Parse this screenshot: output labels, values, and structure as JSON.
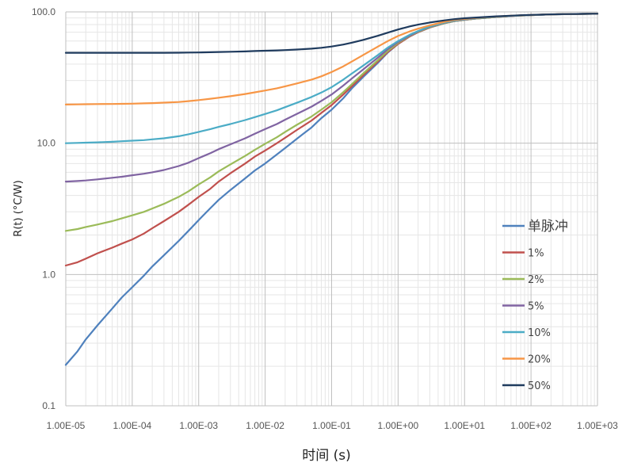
{
  "chart_data": {
    "type": "line",
    "xscale": "log",
    "yscale": "log",
    "xlabel": "时间 (s)",
    "ylabel": "R(t) (°C/W)",
    "xlim": [
      1e-05,
      1000
    ],
    "ylim": [
      0.1,
      100
    ],
    "grid": true,
    "legend_position": "right",
    "x_tick_labels": [
      "1.00E-05",
      "1.00E-04",
      "1.00E-03",
      "1.00E-02",
      "1.00E-01",
      "1.00E+00",
      "1.00E+01",
      "1.00E+02",
      "1.00E+03"
    ],
    "y_tick_labels": [
      "0.1",
      "1.0",
      "10.0",
      "100.0"
    ],
    "x": [
      1e-05,
      1.5e-05,
      2e-05,
      3e-05,
      5e-05,
      7e-05,
      0.0001,
      0.00015,
      0.0002,
      0.0003,
      0.0005,
      0.0007,
      0.001,
      0.0015,
      0.002,
      0.003,
      0.005,
      0.007,
      0.01,
      0.015,
      0.02,
      0.03,
      0.05,
      0.07,
      0.1,
      0.15,
      0.2,
      0.3,
      0.5,
      0.7,
      1,
      1.5,
      2,
      3,
      5,
      7,
      10,
      15,
      20,
      30,
      50,
      70,
      100,
      150,
      200,
      300,
      500,
      700,
      1000
    ],
    "series": [
      {
        "name": "单脉冲",
        "color": "#4f81bd",
        "values": [
          0.205,
          0.26,
          0.32,
          0.41,
          0.55,
          0.67,
          0.8,
          0.98,
          1.15,
          1.4,
          1.8,
          2.15,
          2.6,
          3.2,
          3.7,
          4.4,
          5.4,
          6.2,
          7.0,
          8.2,
          9.2,
          10.8,
          13.2,
          15.5,
          18.0,
          22.0,
          26.0,
          32.0,
          41.0,
          49.0,
          57.0,
          65.0,
          70.0,
          76.0,
          82.0,
          85.0,
          87.0,
          89.0,
          90.0,
          91.5,
          93.0,
          93.8,
          94.5,
          95.2,
          95.6,
          96.0,
          96.4,
          96.6,
          96.8
        ]
      },
      {
        "name": "1%",
        "color": "#c0504d",
        "values": [
          1.17,
          1.24,
          1.32,
          1.45,
          1.6,
          1.72,
          1.85,
          2.05,
          2.25,
          2.55,
          3.0,
          3.4,
          3.9,
          4.5,
          5.1,
          5.9,
          7.0,
          7.9,
          8.8,
          10.0,
          11.0,
          12.6,
          14.9,
          17.0,
          19.5,
          23.5,
          27.0,
          33.0,
          42.0,
          49.5,
          57.0,
          65.0,
          70.0,
          76.0,
          82.0,
          85.0,
          87.0,
          89.0,
          90.0,
          91.5,
          93.0,
          93.8,
          94.5,
          95.2,
          95.6,
          96.0,
          96.4,
          96.6,
          96.8
        ]
      },
      {
        "name": "2%",
        "color": "#9bbb59",
        "values": [
          2.15,
          2.22,
          2.3,
          2.4,
          2.55,
          2.68,
          2.82,
          3.0,
          3.18,
          3.45,
          3.9,
          4.3,
          4.85,
          5.5,
          6.1,
          6.9,
          8.0,
          8.9,
          9.9,
          11.1,
          12.2,
          13.8,
          16.0,
          18.0,
          20.5,
          24.5,
          28.0,
          34.0,
          43.0,
          50.5,
          58.0,
          65.5,
          70.5,
          76.5,
          82.0,
          85.0,
          87.0,
          89.0,
          90.0,
          91.5,
          93.0,
          93.8,
          94.5,
          95.2,
          95.6,
          96.0,
          96.4,
          96.6,
          96.8
        ]
      },
      {
        "name": "5%",
        "color": "#8064a2",
        "values": [
          5.1,
          5.15,
          5.2,
          5.3,
          5.45,
          5.55,
          5.7,
          5.85,
          6.0,
          6.25,
          6.7,
          7.1,
          7.7,
          8.4,
          9.0,
          9.8,
          10.9,
          11.8,
          12.8,
          14.0,
          15.1,
          16.7,
          19.0,
          21.0,
          23.5,
          27.5,
          31.0,
          36.5,
          45.0,
          52.0,
          59.0,
          66.0,
          71.0,
          77.0,
          82.5,
          85.5,
          87.5,
          89.3,
          90.3,
          91.8,
          93.2,
          94.0,
          94.6,
          95.3,
          95.7,
          96.1,
          96.5,
          96.7,
          96.8
        ]
      },
      {
        "name": "10%",
        "color": "#4bacc6",
        "values": [
          10.0,
          10.05,
          10.1,
          10.15,
          10.25,
          10.35,
          10.45,
          10.55,
          10.7,
          10.9,
          11.3,
          11.7,
          12.2,
          12.8,
          13.3,
          14.0,
          15.0,
          15.8,
          16.7,
          17.8,
          18.8,
          20.3,
          22.5,
          24.3,
          26.7,
          30.5,
          33.8,
          39.0,
          47.0,
          53.5,
          60.0,
          67.0,
          71.5,
          77.5,
          83.0,
          86.0,
          88.0,
          89.5,
          90.5,
          92.0,
          93.3,
          94.0,
          94.7,
          95.3,
          95.7,
          96.1,
          96.5,
          96.7,
          96.8
        ]
      },
      {
        "name": "20%",
        "color": "#f79646",
        "values": [
          19.7,
          19.75,
          19.8,
          19.85,
          19.9,
          19.95,
          20.0,
          20.1,
          20.2,
          20.35,
          20.6,
          20.9,
          21.3,
          21.8,
          22.2,
          22.8,
          23.7,
          24.4,
          25.2,
          26.2,
          27.1,
          28.5,
          30.5,
          32.3,
          34.8,
          38.5,
          41.8,
          47.0,
          54.5,
          60.0,
          65.5,
          71.0,
          74.5,
          79.0,
          84.0,
          86.8,
          88.5,
          90.0,
          91.0,
          92.3,
          93.5,
          94.2,
          94.8,
          95.4,
          95.8,
          96.2,
          96.5,
          96.7,
          96.8
        ]
      },
      {
        "name": "50%",
        "color": "#1f3b5e",
        "values": [
          48.8,
          48.8,
          48.8,
          48.8,
          48.8,
          48.8,
          48.8,
          48.8,
          48.8,
          48.8,
          48.9,
          49.0,
          49.1,
          49.3,
          49.5,
          49.7,
          50.0,
          50.3,
          50.6,
          50.9,
          51.2,
          51.7,
          52.5,
          53.3,
          54.5,
          56.4,
          58.2,
          61.2,
          65.8,
          69.5,
          73.5,
          77.5,
          80.0,
          83.0,
          86.2,
          88.0,
          89.5,
          90.6,
          91.3,
          92.5,
          93.6,
          94.3,
          94.8,
          95.4,
          95.8,
          96.2,
          96.5,
          96.7,
          96.8
        ]
      }
    ]
  }
}
